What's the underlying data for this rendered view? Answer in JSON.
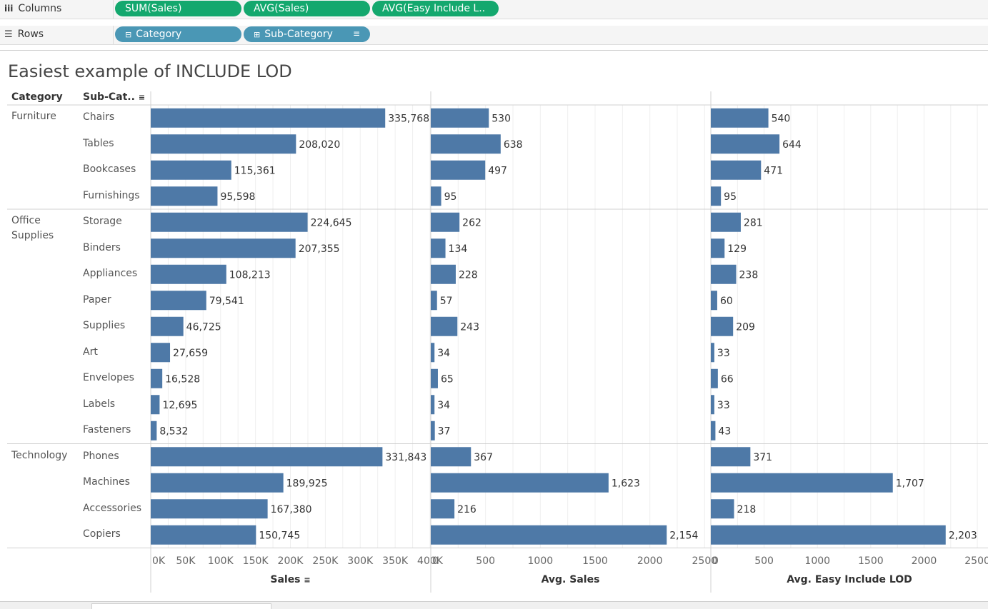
{
  "shelves": {
    "columns_label": "Columns",
    "rows_label": "Rows",
    "column_pills": [
      "SUM(Sales)",
      "AVG(Sales)",
      "AVG(Easy Include L.."
    ],
    "row_pills": [
      "Category",
      "Sub-Category"
    ]
  },
  "headers": {
    "category": "Category",
    "subcategory": "Sub-Cat.."
  },
  "colors": {
    "bar": "#4e79a7",
    "pill_green": "#14a86e",
    "pill_blue": "#4a97b5"
  },
  "chart_data": {
    "type": "bar",
    "title": "Easiest example of INCLUDE LOD",
    "groups": [
      {
        "name": "Furniture",
        "items": [
          "Chairs",
          "Tables",
          "Bookcases",
          "Furnishings"
        ]
      },
      {
        "name": "Office\nSupplies",
        "items": [
          "Storage",
          "Binders",
          "Appliances",
          "Paper",
          "Supplies",
          "Art",
          "Envelopes",
          "Labels",
          "Fasteners"
        ]
      },
      {
        "name": "Technology",
        "items": [
          "Phones",
          "Machines",
          "Accessories",
          "Copiers"
        ]
      }
    ],
    "categories": [
      "Chairs",
      "Tables",
      "Bookcases",
      "Furnishings",
      "Storage",
      "Binders",
      "Appliances",
      "Paper",
      "Supplies",
      "Art",
      "Envelopes",
      "Labels",
      "Fasteners",
      "Phones",
      "Machines",
      "Accessories",
      "Copiers"
    ],
    "panels": [
      {
        "xlabel": "Sales",
        "xlim": [
          0,
          400000
        ],
        "ticks": [
          0,
          50000,
          100000,
          150000,
          200000,
          250000,
          300000,
          350000,
          400000
        ],
        "tick_labels": [
          "0K",
          "50K",
          "100K",
          "150K",
          "200K",
          "250K",
          "300K",
          "350K",
          "400K"
        ],
        "values": [
          335768,
          208020,
          115361,
          95598,
          224645,
          207355,
          108213,
          79541,
          46725,
          27659,
          16528,
          12695,
          8532,
          331843,
          189925,
          167380,
          150745
        ],
        "labels": [
          "335,768",
          "208,020",
          "115,361",
          "95,598",
          "224,645",
          "207,355",
          "108,213",
          "79,541",
          "46,725",
          "27,659",
          "16,528",
          "12,695",
          "8,532",
          "331,843",
          "189,925",
          "167,380",
          "150,745"
        ]
      },
      {
        "xlabel": "Avg. Sales",
        "xlim": [
          0,
          2550
        ],
        "ticks": [
          0,
          500,
          1000,
          1500,
          2000,
          2500
        ],
        "tick_labels": [
          "0",
          "500",
          "1000",
          "1500",
          "2000",
          "2500"
        ],
        "values": [
          530,
          638,
          497,
          95,
          262,
          134,
          228,
          57,
          243,
          34,
          65,
          34,
          37,
          367,
          1623,
          216,
          2154
        ],
        "labels": [
          "530",
          "638",
          "497",
          "95",
          "262",
          "134",
          "228",
          "57",
          "243",
          "34",
          "65",
          "34",
          "37",
          "367",
          "1,623",
          "216",
          "2,154"
        ]
      },
      {
        "xlabel": "Avg. Easy Include LOD",
        "xlim": [
          0,
          2600
        ],
        "ticks": [
          0,
          500,
          1000,
          1500,
          2000,
          2500
        ],
        "tick_labels": [
          "0",
          "500",
          "1000",
          "1500",
          "2000",
          "2500"
        ],
        "values": [
          540,
          644,
          471,
          95,
          281,
          129,
          238,
          60,
          209,
          33,
          66,
          33,
          43,
          371,
          1707,
          218,
          2203
        ],
        "labels": [
          "540",
          "644",
          "471",
          "95",
          "281",
          "129",
          "238",
          "60",
          "209",
          "33",
          "66",
          "33",
          "43",
          "371",
          "1,707",
          "218",
          "2,203"
        ]
      }
    ]
  }
}
